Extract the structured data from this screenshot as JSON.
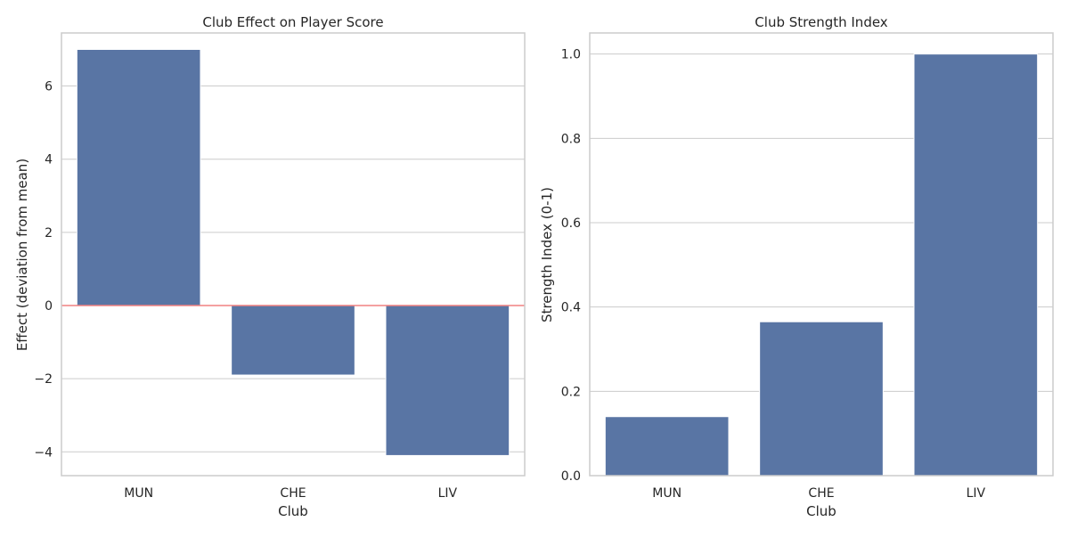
{
  "chart_data": [
    {
      "type": "bar",
      "title": "Club Effect on Player Score",
      "xlabel": "Club",
      "ylabel": "Effect (deviation from mean)",
      "categories": [
        "MUN",
        "CHE",
        "LIV"
      ],
      "values": [
        7.0,
        -1.9,
        -4.1
      ],
      "ylim": [
        -4.65,
        7.45
      ],
      "yticks": [
        -4,
        -2,
        0,
        2,
        4,
        6
      ],
      "ytick_labels": [
        "−4",
        "−2",
        "0",
        "2",
        "4",
        "6"
      ],
      "reference_line": {
        "y": 0,
        "color": "#f08080"
      },
      "grid": true,
      "bar_color": "#5975a4"
    },
    {
      "type": "bar",
      "title": "Club Strength Index",
      "xlabel": "Club",
      "ylabel": "Strength Index (0-1)",
      "categories": [
        "MUN",
        "CHE",
        "LIV"
      ],
      "values": [
        0.14,
        0.365,
        1.0
      ],
      "ylim": [
        0,
        1.05
      ],
      "yticks": [
        0,
        0.2,
        0.4,
        0.6,
        0.8,
        1.0
      ],
      "ytick_labels": [
        "0.0",
        "0.2",
        "0.4",
        "0.6",
        "0.8",
        "1.0"
      ],
      "grid": true,
      "bar_color": "#5975a4"
    }
  ]
}
